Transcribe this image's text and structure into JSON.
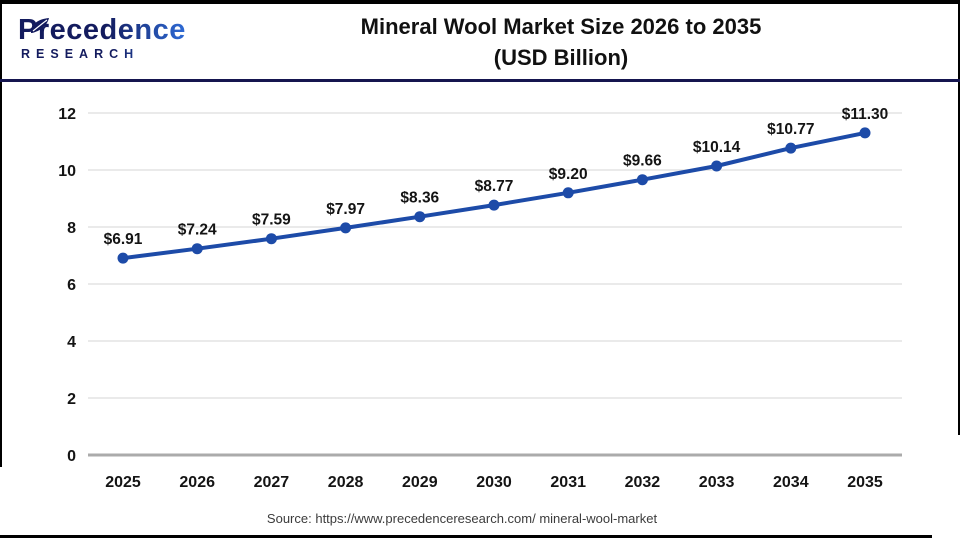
{
  "header": {
    "logo": {
      "line1": "Precedence",
      "line2": "RESEARCH"
    },
    "title_line1": "Mineral Wool Market Size 2026 to 2035",
    "title_line2": "(USD Billion)"
  },
  "chart_data": {
    "type": "line",
    "title": "Mineral Wool Market Size 2026 to 2035 (USD Billion)",
    "categories": [
      "2025",
      "2026",
      "2027",
      "2028",
      "2029",
      "2030",
      "2031",
      "2032",
      "2033",
      "2034",
      "2035"
    ],
    "series": [
      {
        "name": "Mineral Wool Market Size (USD Billion)",
        "values": [
          6.91,
          7.24,
          7.59,
          7.97,
          8.36,
          8.77,
          9.2,
          9.66,
          10.14,
          10.77,
          11.3
        ],
        "point_labels": [
          "$6.91",
          "$7.24",
          "$7.59",
          "$7.97",
          "$8.36",
          "$8.77",
          "$9.20",
          "$9.66",
          "$10.14",
          "$10.77",
          "$11.30"
        ],
        "color": "#1d4ba8"
      }
    ],
    "xlabel": "",
    "ylabel": "",
    "ylim": [
      0,
      12
    ],
    "yticks": [
      0,
      2,
      4,
      6,
      8,
      10,
      12
    ],
    "grid": true,
    "legend_position": "none"
  },
  "footer": {
    "source": "Source: https://www.precedenceresearch.com/ mineral-wool-market"
  },
  "colors": {
    "accent_line": "#1d4ba8",
    "gridline": "#e4e4e4",
    "zero_axis": "#ababab",
    "divider_navy": "#15154f",
    "logo_navy": "#131b5e",
    "logo_blue": "#2e6bd6"
  }
}
